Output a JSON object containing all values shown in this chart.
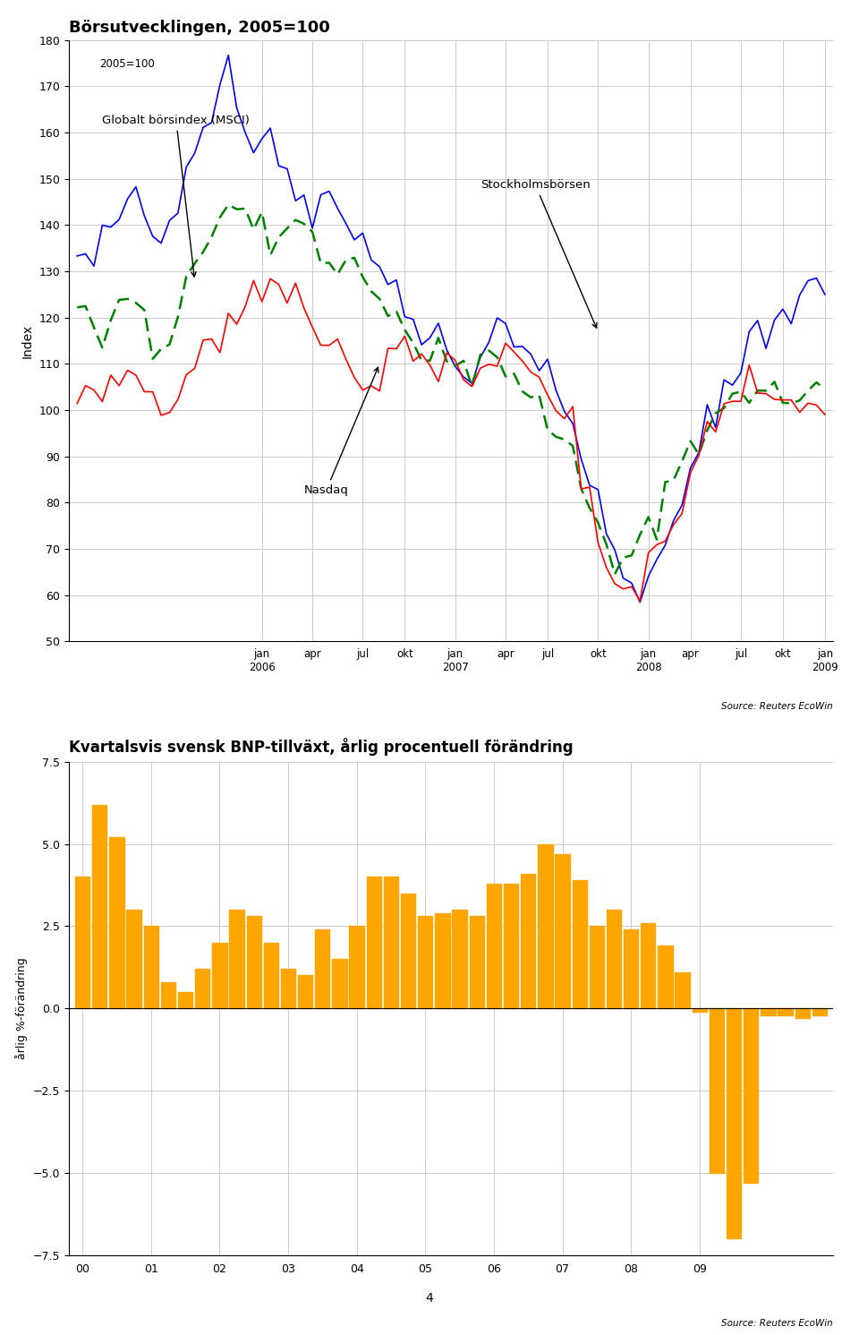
{
  "chart1": {
    "title": "Börsutvecklingen, 2005=100",
    "subtitle": "2005=100",
    "ylabel": "Index",
    "ylim": [
      50,
      180
    ],
    "yticks": [
      50,
      60,
      70,
      80,
      90,
      100,
      110,
      120,
      130,
      140,
      150,
      160,
      170,
      180
    ],
    "source": "Source: Reuters EcoWin",
    "sthlm": [
      130,
      132,
      135,
      140,
      138,
      143,
      145,
      148,
      142,
      138,
      135,
      138,
      145,
      150,
      155,
      160,
      165,
      170,
      173,
      168,
      165,
      160,
      158,
      155,
      150,
      148,
      145,
      143,
      140,
      145,
      148,
      145,
      140,
      138,
      135,
      132,
      130,
      128,
      125,
      122,
      118,
      115,
      118,
      120,
      115,
      110,
      108,
      105,
      110,
      115,
      120,
      118,
      115,
      112,
      110,
      108,
      105,
      102,
      100,
      98,
      90,
      85,
      80,
      75,
      70,
      65,
      60,
      62,
      65,
      68,
      70,
      75,
      80,
      85,
      90,
      95,
      100,
      105,
      108,
      110,
      112,
      115,
      118,
      120,
      122,
      124,
      125,
      127,
      128,
      130
    ],
    "msci": [
      120,
      122,
      118,
      115,
      118,
      122,
      125,
      123,
      120,
      115,
      113,
      118,
      122,
      128,
      132,
      135,
      138,
      140,
      143,
      145,
      143,
      140,
      138,
      135,
      138,
      140,
      142,
      140,
      138,
      135,
      133,
      132,
      130,
      128,
      126,
      125,
      122,
      120,
      118,
      116,
      115,
      113,
      112,
      115,
      113,
      110,
      108,
      105,
      108,
      110,
      112,
      110,
      108,
      105,
      102,
      100,
      98,
      95,
      93,
      90,
      82,
      78,
      73,
      70,
      65,
      68,
      70,
      72,
      75,
      78,
      82,
      85,
      88,
      92,
      95,
      98,
      100,
      102,
      103,
      105,
      105,
      103,
      102,
      105,
      103,
      102,
      101,
      103,
      104,
      105
    ],
    "nasdaq": [
      105,
      107,
      103,
      100,
      102,
      105,
      108,
      108,
      105,
      102,
      98,
      100,
      105,
      108,
      110,
      112,
      113,
      115,
      118,
      120,
      122,
      125,
      126,
      128,
      130,
      128,
      125,
      122,
      120,
      118,
      115,
      112,
      110,
      108,
      106,
      105,
      108,
      110,
      112,
      113,
      112,
      110,
      108,
      110,
      112,
      110,
      108,
      106,
      108,
      110,
      112,
      113,
      112,
      110,
      108,
      106,
      104,
      102,
      100,
      98,
      88,
      82,
      75,
      70,
      65,
      62,
      60,
      63,
      65,
      68,
      72,
      76,
      80,
      85,
      90,
      94,
      97,
      100,
      102,
      104,
      105,
      103,
      102,
      105,
      104,
      102,
      101,
      100,
      100,
      101
    ],
    "xtick_months": [
      12,
      15,
      18,
      21,
      24,
      27,
      30,
      33,
      36,
      39,
      42,
      45,
      48
    ],
    "xtick_labels": [
      "jan\n2006",
      "apr",
      "jul",
      "okt",
      "jan\n2007",
      "apr",
      "jul",
      "okt",
      "jan\n2008",
      "apr",
      "jul",
      "okt",
      "jan\n2009"
    ],
    "total_months": 48
  },
  "chart2": {
    "title": "Kvartalsvis svensk BNP-tillväxt, årlig procentuell förändring",
    "ylabel": "årlig %-förändring",
    "ylim": [
      -7.5,
      7.5
    ],
    "yticks": [
      -7.5,
      -5.0,
      -2.5,
      0.0,
      2.5,
      5.0,
      7.5
    ],
    "bar_color": "#FFA500",
    "source": "Source: Reuters EcoWin",
    "values": [
      4.0,
      6.2,
      5.2,
      3.0,
      2.5,
      0.8,
      0.5,
      1.2,
      2.0,
      3.0,
      2.8,
      2.0,
      1.2,
      1.0,
      2.4,
      1.5,
      2.5,
      4.0,
      4.0,
      3.5,
      2.8,
      2.9,
      3.0,
      2.8,
      3.8,
      3.8,
      4.1,
      5.0,
      4.7,
      3.9,
      2.5,
      3.0,
      2.4,
      2.6,
      1.9,
      1.1,
      -0.1,
      -5.0,
      -7.0,
      -5.3,
      -0.2,
      -0.2,
      -0.3,
      -0.2
    ],
    "xtick_years": [
      "00",
      "01",
      "02",
      "03",
      "04",
      "05",
      "06",
      "07",
      "08",
      "09"
    ],
    "xtick_positions": [
      0,
      4,
      8,
      12,
      16,
      20,
      24,
      28,
      32,
      36
    ]
  }
}
